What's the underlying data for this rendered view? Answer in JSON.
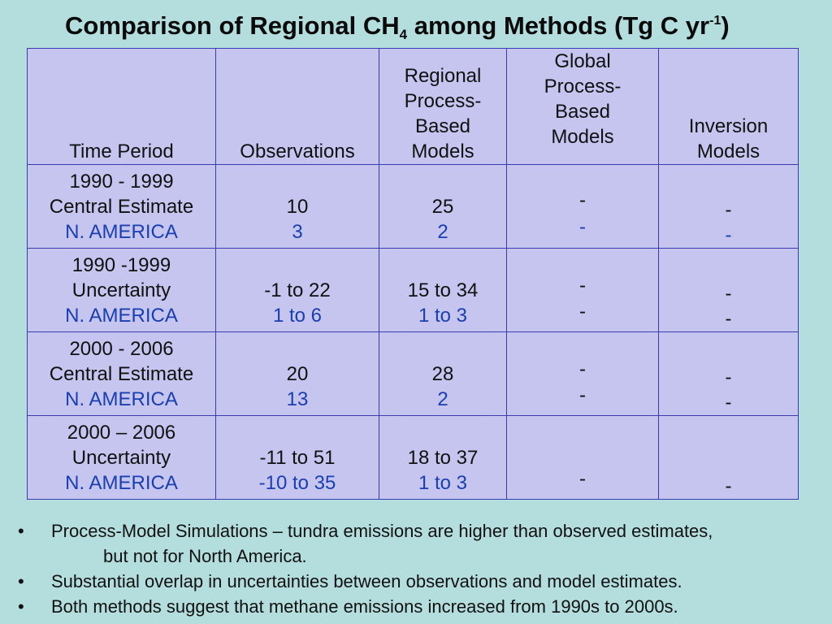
{
  "title": {
    "main": "Comparison of Regional CH",
    "subscript": "4",
    "rest": " among Methods (Tg C yr",
    "superscript": "-1",
    "close": ")"
  },
  "table": {
    "headers": [
      [
        "Time Period"
      ],
      [
        "Observations"
      ],
      [
        "Regional",
        "Process-",
        "Based",
        "Models"
      ],
      [
        "Global",
        "Process-",
        "Based",
        "Models"
      ],
      [
        "Inversion",
        "Models"
      ]
    ],
    "rows": [
      {
        "period": [
          "1990 - 1999",
          "Central Estimate",
          "N. AMERICA"
        ],
        "observations": [
          "10",
          "3"
        ],
        "regional": [
          "25",
          "2"
        ],
        "global": [
          "-",
          "-"
        ],
        "inversion": [
          "-",
          "-"
        ]
      },
      {
        "period": [
          "1990 -1999",
          "Uncertainty",
          "N. AMERICA"
        ],
        "observations": [
          "-1 to 22",
          "1 to 6"
        ],
        "regional": [
          "15 to 34",
          "1 to 3"
        ],
        "global": [
          "-",
          "-"
        ],
        "inversion": [
          "-",
          "-"
        ]
      },
      {
        "period": [
          "2000 - 2006",
          "Central Estimate",
          "N. AMERICA"
        ],
        "observations": [
          "20",
          "13"
        ],
        "regional": [
          "28",
          "2"
        ],
        "global": [
          "-",
          "-"
        ],
        "inversion": [
          "-",
          "-"
        ]
      },
      {
        "period": [
          "2000 – 2006",
          "Uncertainty",
          "N. AMERICA"
        ],
        "observations": [
          "-11 to 51",
          "-10 to 35"
        ],
        "regional": [
          "18 to 37",
          "1 to 3"
        ],
        "global": [
          "-"
        ],
        "inversion": [
          "-"
        ]
      }
    ]
  },
  "bullets": [
    {
      "marker": "•",
      "lines": [
        "Process-Model Simulations – tundra emissions are higher than observed estimates,",
        "but not for North America."
      ]
    },
    {
      "marker": "•",
      "lines": [
        "Substantial overlap in uncertainties between observations and model estimates."
      ]
    },
    {
      "marker": "•",
      "lines": [
        "Both methods suggest that methane emissions increased from 1990s to 2000s."
      ]
    }
  ],
  "colors": {
    "background": "#b4dddd",
    "table_fill": "#c5c5ef",
    "table_border": "#3b3bb0",
    "region_text": "#1a3fb0"
  }
}
